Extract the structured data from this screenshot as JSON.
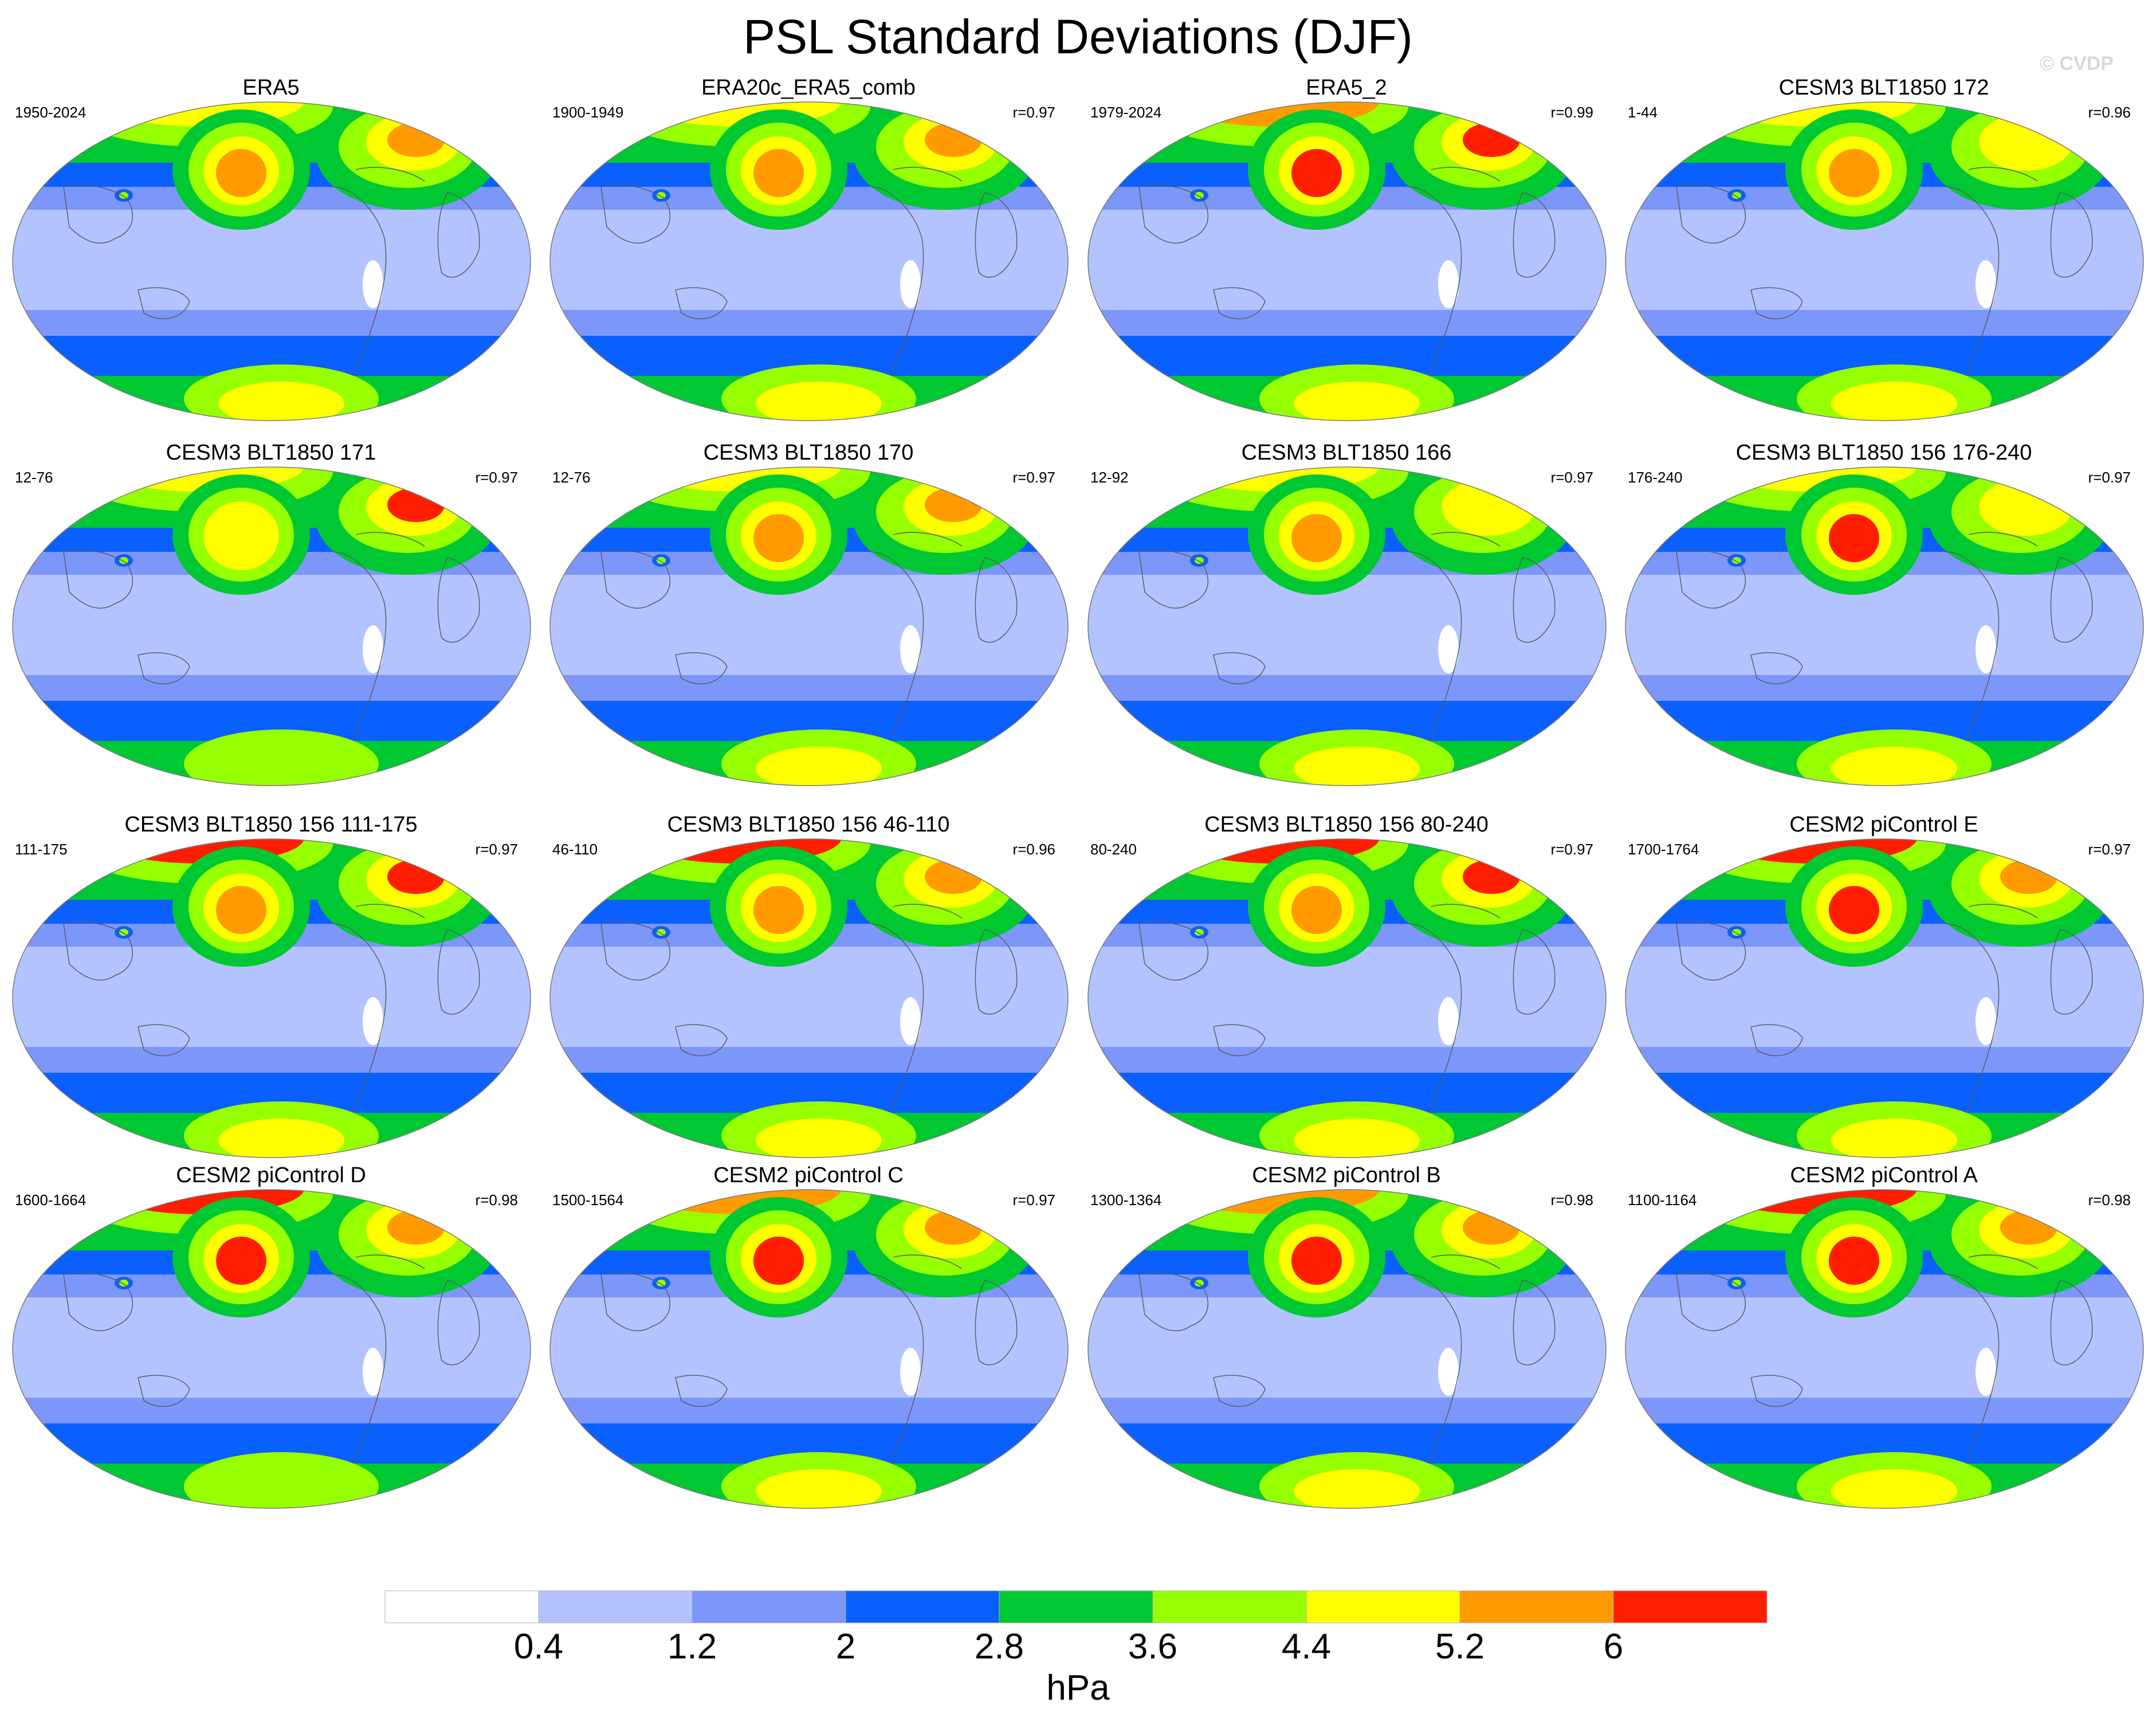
{
  "title": "PSL Standard Deviations (DJF)",
  "credit": "© CVDP",
  "chart_data": {
    "type": "heatmap",
    "projection": "global map (Robinson-like)",
    "colorbar": {
      "levels": [
        0.4,
        1.2,
        2,
        2.8,
        3.6,
        4.4,
        5.2,
        6
      ],
      "labels": [
        "0.4",
        "1.2",
        "2",
        "2.8",
        "3.6",
        "4.4",
        "5.2",
        "6"
      ],
      "colors": [
        "#ffffff",
        "#b2c3ff",
        "#7d96fa",
        "#0a5fff",
        "#00c832",
        "#96ff00",
        "#ffff00",
        "#ff9b00",
        "#ff1e00"
      ],
      "units": "hPa"
    },
    "panels": [
      {
        "title": "ERA5",
        "period": "1950-2024",
        "r": "",
        "north_pacific": 5.6,
        "north_atlantic": 5.4,
        "arctic": 4.8,
        "southern_ocean": 2.6,
        "south_pole": 4.6
      },
      {
        "title": "ERA20c_ERA5_comb",
        "period": "1900-1949",
        "r": "r=0.97",
        "north_pacific": 5.5,
        "north_atlantic": 5.3,
        "arctic": 4.7,
        "southern_ocean": 2.6,
        "south_pole": 4.8
      },
      {
        "title": "ERA5_2",
        "period": "1979-2024",
        "r": "r=0.99",
        "north_pacific": 6.1,
        "north_atlantic": 6.2,
        "arctic": 5.8,
        "southern_ocean": 2.6,
        "south_pole": 4.7
      },
      {
        "title": "CESM3 BLT1850 172",
        "period": "1-44",
        "r": "r=0.96",
        "north_pacific": 5.3,
        "north_atlantic": 4.9,
        "arctic": 4.6,
        "southern_ocean": 2.6,
        "south_pole": 4.5
      },
      {
        "title": "CESM3 BLT1850 171",
        "period": "12-76",
        "r": "r=0.97",
        "north_pacific": 4.8,
        "north_atlantic": 6.0,
        "arctic": 5.0,
        "southern_ocean": 2.6,
        "south_pole": 4.3
      },
      {
        "title": "CESM3 BLT1850 170",
        "period": "12-76",
        "r": "r=0.97",
        "north_pacific": 5.6,
        "north_atlantic": 5.3,
        "arctic": 4.7,
        "southern_ocean": 2.7,
        "south_pole": 4.5
      },
      {
        "title": "CESM3 BLT1850 166",
        "period": "12-92",
        "r": "r=0.97",
        "north_pacific": 5.4,
        "north_atlantic": 5.0,
        "arctic": 4.8,
        "southern_ocean": 2.7,
        "south_pole": 4.6
      },
      {
        "title": "CESM3 BLT1850 156 176-240",
        "period": "176-240",
        "r": "r=0.97",
        "north_pacific": 6.0,
        "north_atlantic": 5.0,
        "arctic": 4.8,
        "southern_ocean": 2.7,
        "south_pole": 4.7
      },
      {
        "title": "CESM3 BLT1850 156 111-175",
        "period": "111-175",
        "r": "r=0.97",
        "north_pacific": 5.3,
        "north_atlantic": 6.1,
        "arctic": 6.1,
        "southern_ocean": 2.7,
        "south_pole": 4.8
      },
      {
        "title": "CESM3 BLT1850 156 46-110",
        "period": "46-110",
        "r": "r=0.96",
        "north_pacific": 5.5,
        "north_atlantic": 5.8,
        "arctic": 6.1,
        "southern_ocean": 2.7,
        "south_pole": 4.9
      },
      {
        "title": "CESM3 BLT1850 156 80-240",
        "period": "80-240",
        "r": "r=0.97",
        "north_pacific": 5.6,
        "north_atlantic": 6.0,
        "arctic": 6.0,
        "southern_ocean": 2.7,
        "south_pole": 4.8
      },
      {
        "title": "CESM2 piControl E",
        "period": "1700-1764",
        "r": "r=0.97",
        "north_pacific": 6.5,
        "north_atlantic": 5.4,
        "arctic": 6.3,
        "southern_ocean": 2.6,
        "south_pole": 4.9
      },
      {
        "title": "CESM2 piControl D",
        "period": "1600-1664",
        "r": "r=0.98",
        "north_pacific": 6.4,
        "north_atlantic": 5.8,
        "arctic": 6.3,
        "southern_ocean": 2.6,
        "south_pole": 4.2
      },
      {
        "title": "CESM2 piControl C",
        "period": "1500-1564",
        "r": "r=0.97",
        "north_pacific": 6.3,
        "north_atlantic": 5.5,
        "arctic": 5.9,
        "southern_ocean": 2.6,
        "south_pole": 4.7
      },
      {
        "title": "CESM2 piControl B",
        "period": "1300-1364",
        "r": "r=0.98",
        "north_pacific": 6.4,
        "north_atlantic": 5.5,
        "arctic": 5.5,
        "southern_ocean": 2.6,
        "south_pole": 4.5
      },
      {
        "title": "CESM2 piControl A",
        "period": "1100-1164",
        "r": "r=0.98",
        "north_pacific": 6.5,
        "north_atlantic": 5.8,
        "arctic": 6.3,
        "southern_ocean": 2.6,
        "south_pole": 4.4
      }
    ]
  }
}
